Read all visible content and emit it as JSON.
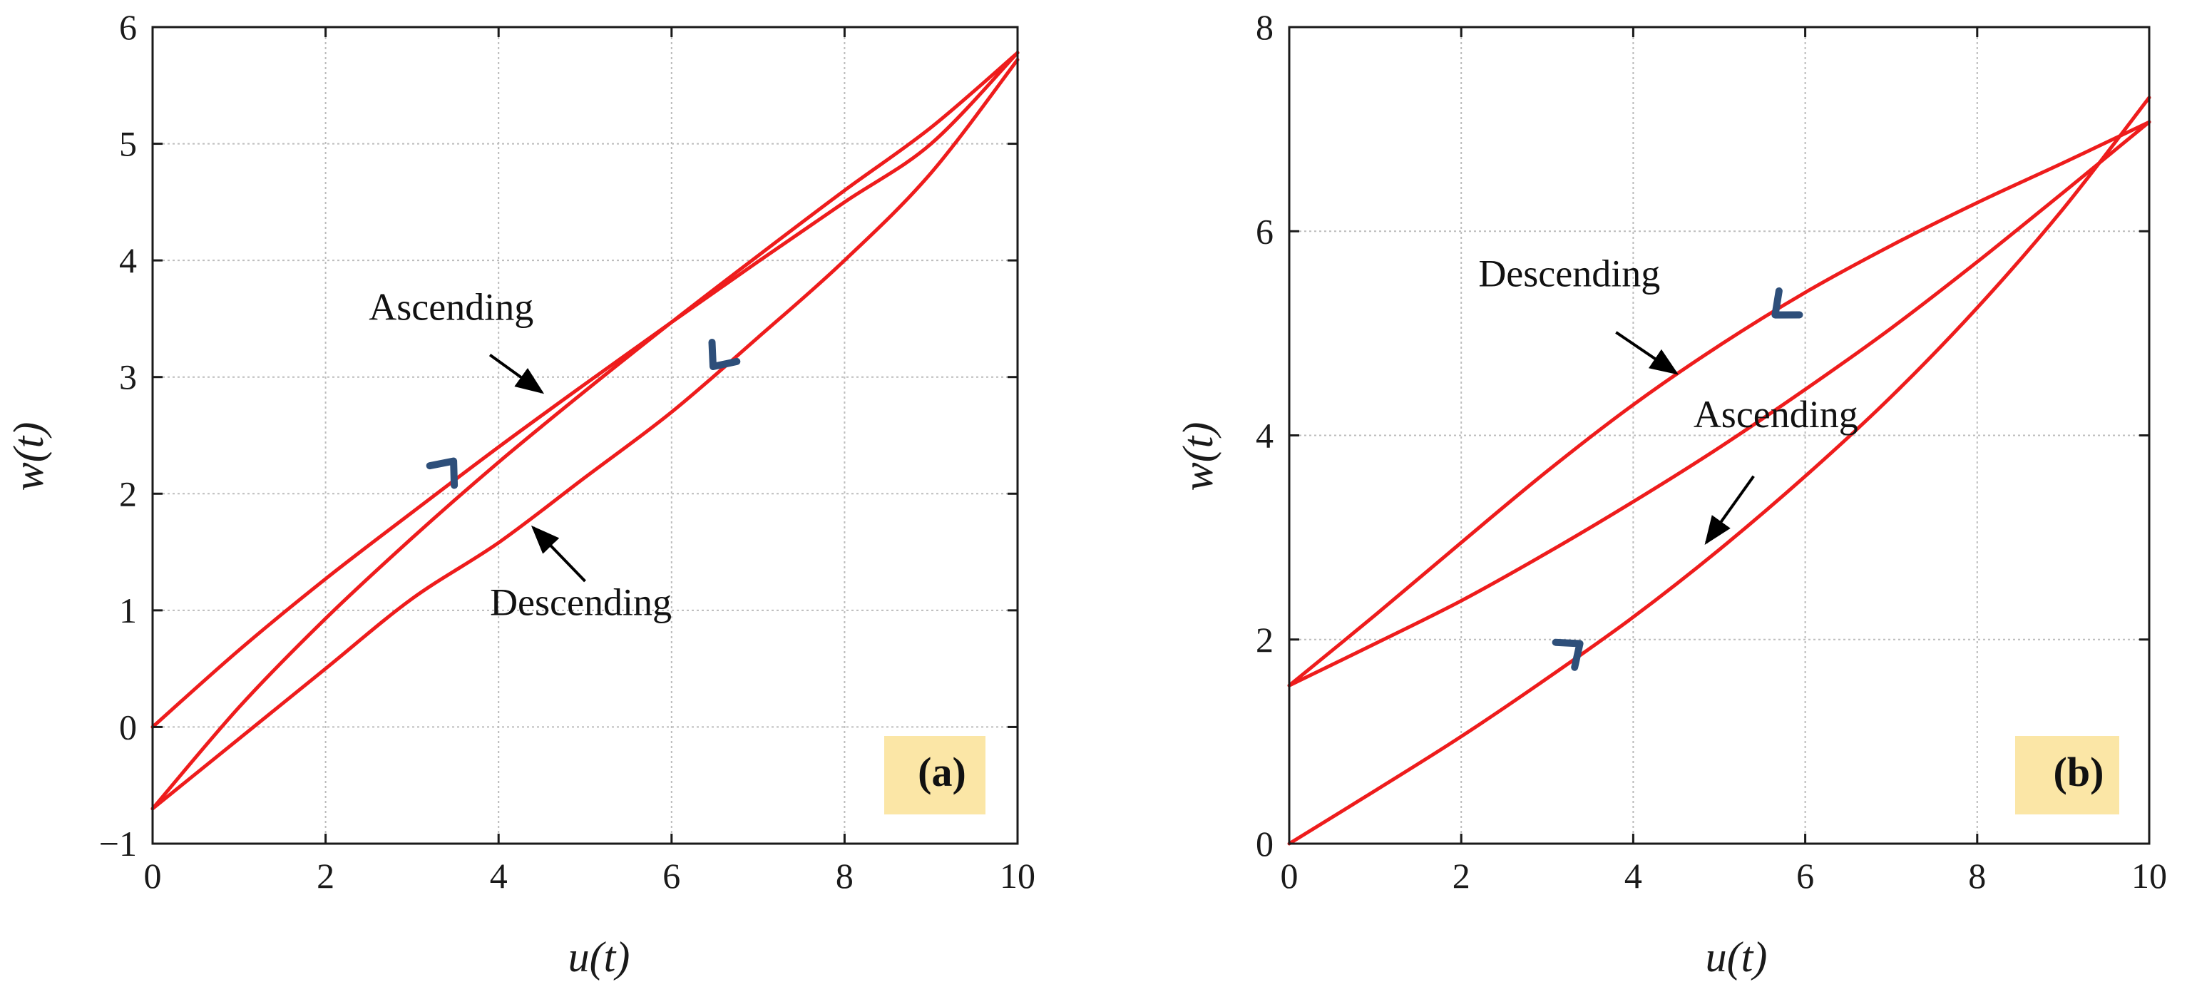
{
  "colors": {
    "curve": "#ee1c1c",
    "direction_arrow": "#2e4f7a",
    "pointer_arrow": "#000000",
    "panel_label_bg": "#fbe6a6",
    "grid": "#bcbcbc",
    "axes": "#1a1a1a"
  },
  "chart_data": [
    {
      "type": "line",
      "panel_label": "(a)",
      "xlabel": "u(t)",
      "ylabel": "w(t)",
      "xlim": [
        0,
        10
      ],
      "ylim": [
        -1,
        6
      ],
      "xticks": [
        0,
        2,
        4,
        6,
        8,
        10
      ],
      "yticks": [
        -1,
        0,
        1,
        2,
        3,
        4,
        5,
        6
      ],
      "xtick_labels": [
        "0",
        "2",
        "4",
        "6",
        "8",
        "10"
      ],
      "ytick_labels": [
        "−1",
        "0",
        "1",
        "2",
        "3",
        "4",
        "5",
        "6"
      ],
      "grid": true,
      "series": [
        {
          "x": [
            0,
            1,
            2,
            3,
            4,
            5,
            6,
            7,
            8,
            9,
            10
          ],
          "y": [
            0.0,
            0.66,
            1.27,
            1.84,
            2.4,
            2.94,
            3.47,
            3.99,
            4.5,
            5.0,
            5.78
          ]
        },
        {
          "x": [
            0,
            1,
            2,
            3,
            4,
            5,
            6,
            7,
            8,
            9,
            10
          ],
          "y": [
            -0.7,
            0.17,
            0.93,
            1.62,
            2.27,
            2.88,
            3.47,
            4.04,
            4.6,
            5.14,
            5.78
          ]
        },
        {
          "x": [
            0,
            1,
            2,
            3,
            4,
            5,
            6,
            7,
            8,
            9,
            10
          ],
          "y": [
            -0.7,
            -0.1,
            0.5,
            1.1,
            1.58,
            2.14,
            2.7,
            3.34,
            4.0,
            4.75,
            5.72
          ]
        }
      ],
      "annotations": [
        {
          "text": "Ascending",
          "text_x": 2.5,
          "text_y": 3.49,
          "arrow_from": [
            3.9,
            3.19
          ],
          "arrow_to": [
            4.5,
            2.87
          ]
        },
        {
          "text": "Descending",
          "text_x": 3.9,
          "text_y": 0.96,
          "arrow_from": [
            5.0,
            1.25
          ],
          "arrow_to": [
            4.4,
            1.71
          ]
        }
      ],
      "direction_markers": [
        {
          "at": [
            3.48,
            2.28
          ],
          "dir": [
            1,
            0.93
          ]
        },
        {
          "at": [
            6.48,
            3.09
          ],
          "dir": [
            -1,
            -0.96
          ]
        }
      ]
    },
    {
      "type": "line",
      "panel_label": "(b)",
      "xlabel": "u(t)",
      "ylabel": "w(t)",
      "xlim": [
        0,
        10
      ],
      "ylim": [
        0,
        8
      ],
      "xticks": [
        0,
        2,
        4,
        6,
        8,
        10
      ],
      "yticks": [
        0,
        2,
        4,
        6,
        8
      ],
      "xtick_labels": [
        "0",
        "2",
        "4",
        "6",
        "8",
        "10"
      ],
      "ytick_labels": [
        "0",
        "2",
        "4",
        "6",
        "8"
      ],
      "grid": true,
      "series": [
        {
          "x": [
            0,
            1,
            2,
            3,
            4,
            5,
            6,
            7,
            8,
            9,
            10
          ],
          "y": [
            1.55,
            2.24,
            2.95,
            3.65,
            4.3,
            4.88,
            5.4,
            5.86,
            6.28,
            6.67,
            7.07
          ]
        },
        {
          "x": [
            0,
            1,
            2,
            3,
            4,
            5,
            6,
            7,
            8,
            9,
            10
          ],
          "y": [
            1.55,
            1.96,
            2.38,
            2.85,
            3.35,
            3.88,
            4.45,
            5.05,
            5.7,
            6.38,
            7.07
          ]
        },
        {
          "x": [
            0,
            1,
            2,
            3,
            4,
            5,
            6,
            7,
            8,
            9,
            10
          ],
          "y": [
            0.0,
            0.52,
            1.05,
            1.62,
            2.22,
            2.88,
            3.6,
            4.38,
            5.25,
            6.22,
            7.31
          ]
        }
      ],
      "annotations": [
        {
          "text": "Descending",
          "text_x": 2.2,
          "text_y": 5.46,
          "arrow_from": [
            3.8,
            5.01
          ],
          "arrow_to": [
            4.5,
            4.61
          ]
        },
        {
          "text": "Ascending",
          "text_x": 4.7,
          "text_y": 4.08,
          "arrow_from": [
            5.4,
            3.6
          ],
          "arrow_to": [
            4.85,
            2.95
          ]
        }
      ],
      "direction_markers": [
        {
          "at": [
            5.65,
            5.18
          ],
          "dir": [
            -1,
            -0.72
          ]
        },
        {
          "at": [
            3.38,
            1.96
          ],
          "dir": [
            1,
            0.64
          ]
        }
      ]
    }
  ]
}
